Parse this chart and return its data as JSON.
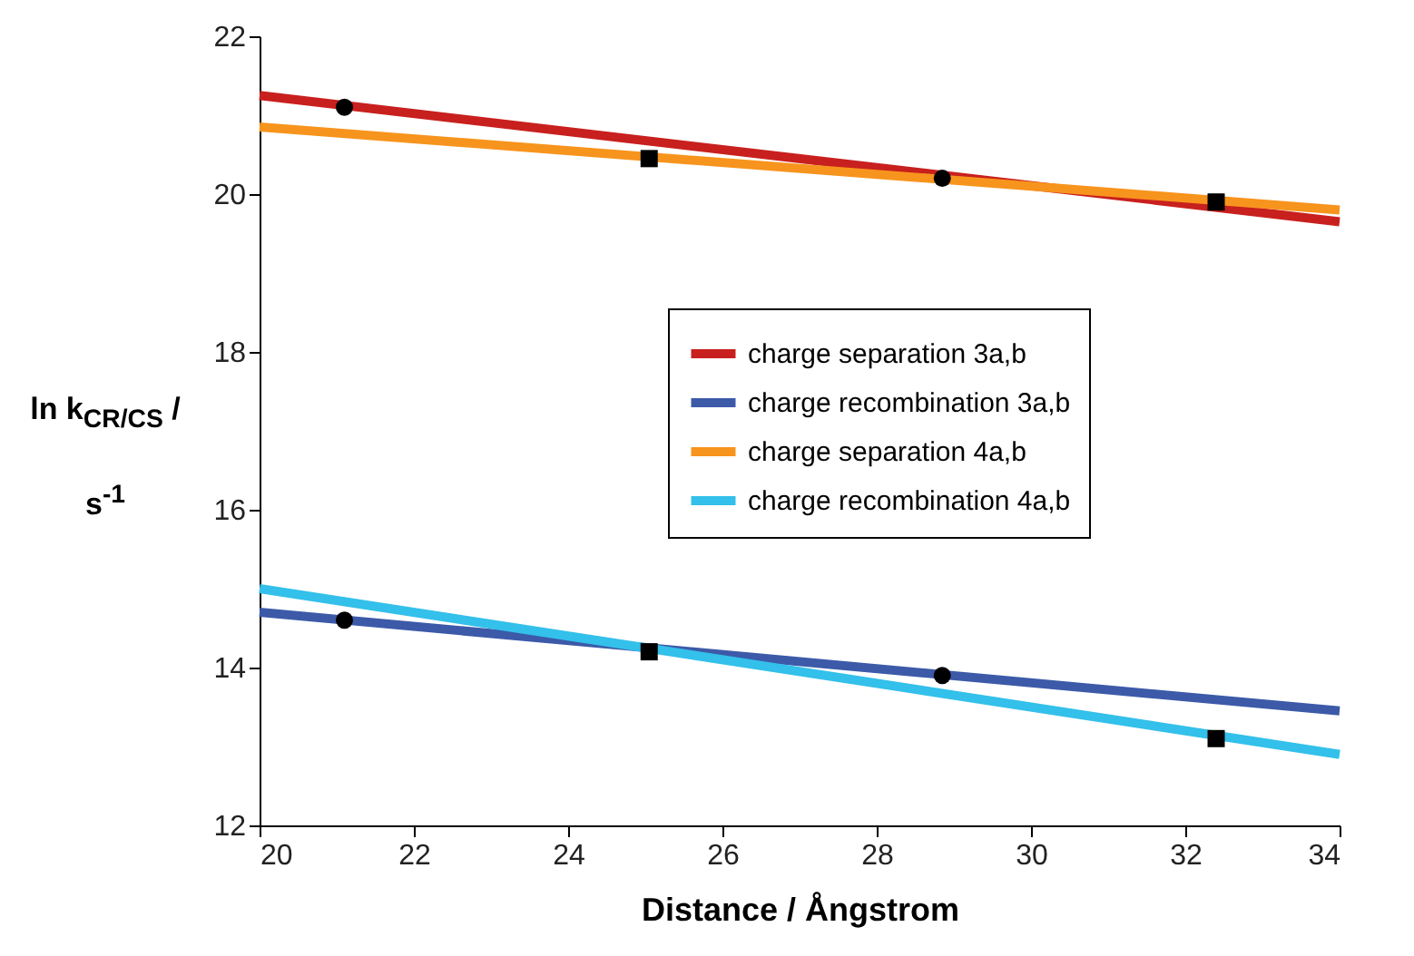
{
  "chart_data": {
    "type": "line",
    "xlabel": "Distance / Ångstrom",
    "ylabel": "ln k$_{CR/CS}$ / s$^{-1}$",
    "xlim": [
      20,
      34
    ],
    "xticks": [
      20,
      22,
      24,
      26,
      28,
      30,
      32,
      34
    ],
    "ylim": [
      12,
      22
    ],
    "yticks": [
      12,
      14,
      16,
      18,
      20,
      22
    ],
    "legend": "right",
    "line_style": "solid",
    "series": [
      {
        "name": "charge separation 3a,b",
        "color": "#c8201e",
        "x": [
          20,
          34
        ],
        "values": [
          21.25,
          19.65
        ]
      },
      {
        "name": "charge recombination 3a,b",
        "color": "#3c5aa8",
        "x": [
          20,
          34
        ],
        "values": [
          14.7,
          13.45
        ]
      },
      {
        "name": "charge separation 4a,b",
        "color": "#f7941d",
        "x": [
          20,
          34
        ],
        "values": [
          20.85,
          19.8
        ]
      },
      {
        "name": "charge recombination 4a,b",
        "color": "#33c0ea",
        "x": [
          20,
          34
        ],
        "values": [
          15.0,
          12.9
        ]
      },
      {
        "type": "scatter",
        "marker": "circle",
        "color": "#000000",
        "x": [
          21.1,
          28.85
        ],
        "values": [
          21.1,
          20.2
        ]
      },
      {
        "type": "scatter",
        "marker": "circle",
        "color": "#000000",
        "x": [
          21.1,
          28.85
        ],
        "values": [
          14.6,
          13.9
        ]
      },
      {
        "type": "scatter",
        "marker": "square",
        "color": "#000000",
        "x": [
          25.05,
          32.4
        ],
        "values": [
          20.45,
          19.9
        ]
      },
      {
        "type": "scatter",
        "marker": "square",
        "color": "#000000",
        "x": [
          25.05,
          32.4
        ],
        "values": [
          14.2,
          13.1
        ]
      }
    ]
  }
}
